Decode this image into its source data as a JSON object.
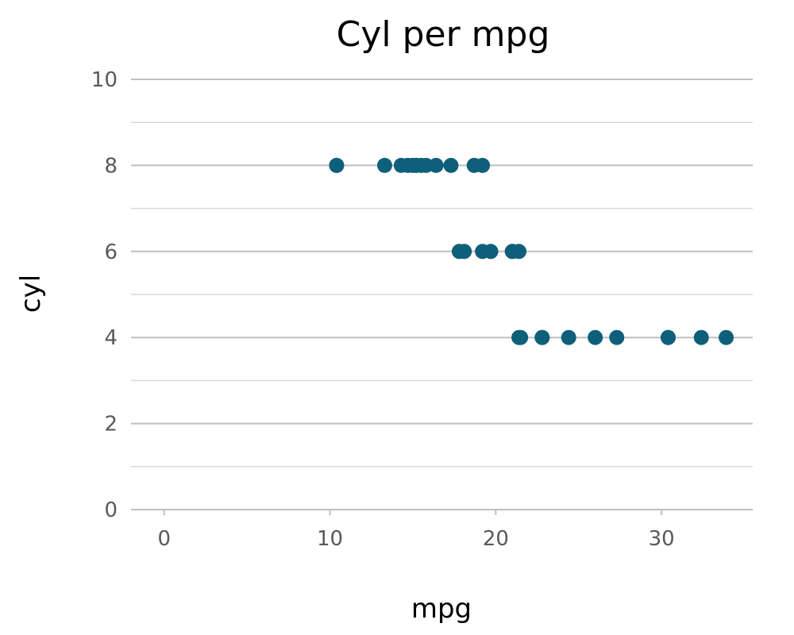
{
  "chart_data": {
    "type": "scatter",
    "title": "Cyl per mpg",
    "xlabel": "mpg",
    "ylabel": "cyl",
    "xlim": [
      -2,
      35.5
    ],
    "ylim": [
      0,
      10
    ],
    "x_ticks": [
      0,
      10,
      20,
      30
    ],
    "y_ticks": [
      0,
      2,
      4,
      6,
      8,
      10
    ],
    "y_minor_gridlines": [
      1,
      3,
      5,
      7,
      9
    ],
    "grid": true,
    "legend": "none",
    "marker_color": "#0e5f7a",
    "gridline_major_color": "#bfbfbf",
    "gridline_minor_color": "#d9d9d9",
    "series": [
      {
        "x": [
          21.0,
          21.0,
          22.8,
          21.4,
          18.7,
          18.1,
          14.3,
          24.4,
          22.8,
          19.2,
          17.8,
          16.4,
          17.3,
          15.2,
          10.4,
          10.4,
          14.7,
          32.4,
          30.4,
          33.9,
          21.5,
          15.5,
          15.2,
          13.3,
          19.2,
          27.3,
          26.0,
          30.4,
          15.8,
          19.7,
          15.0,
          21.4
        ],
        "y": [
          6,
          6,
          4,
          6,
          8,
          6,
          8,
          4,
          4,
          6,
          6,
          8,
          8,
          8,
          8,
          8,
          8,
          4,
          4,
          4,
          4,
          8,
          8,
          8,
          8,
          4,
          4,
          4,
          8,
          6,
          8,
          4
        ]
      }
    ]
  }
}
